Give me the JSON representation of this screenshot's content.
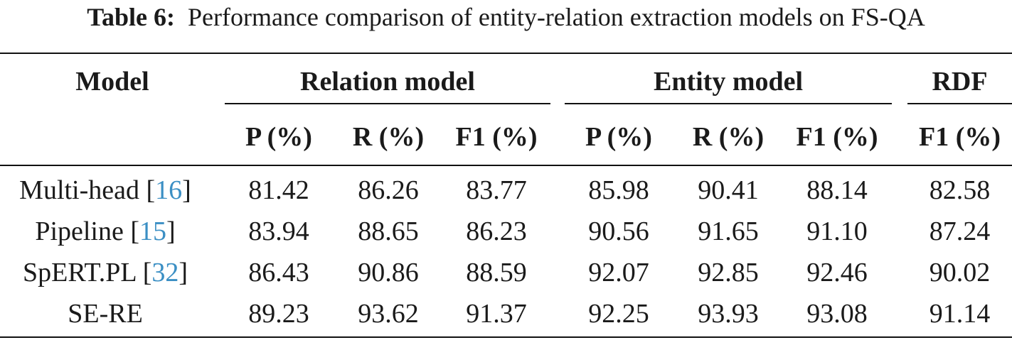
{
  "caption": {
    "label": "Table 6:",
    "text": "Performance comparison of entity-relation extraction models on FS-QA"
  },
  "header": {
    "model": "Model",
    "groups": [
      "Relation model",
      "Entity model",
      "RDF"
    ],
    "subcolumns": [
      "P (%)",
      "R (%)",
      "F1 (%)",
      "P (%)",
      "R (%)",
      "F1 (%)",
      "F1 (%)"
    ]
  },
  "rows": [
    {
      "model": "Multi-head",
      "ref": "16",
      "values": [
        "81.42",
        "86.26",
        "83.77",
        "85.98",
        "90.41",
        "88.14",
        "82.58"
      ]
    },
    {
      "model": "Pipeline",
      "ref": "15",
      "values": [
        "83.94",
        "88.65",
        "86.23",
        "90.56",
        "91.65",
        "91.10",
        "87.24"
      ]
    },
    {
      "model": "SpERT.PL",
      "ref": "32",
      "values": [
        "86.43",
        "90.86",
        "88.59",
        "92.07",
        "92.85",
        "92.46",
        "90.02"
      ]
    },
    {
      "model": "SE-RE",
      "ref": "",
      "values": [
        "89.23",
        "93.62",
        "91.37",
        "92.25",
        "93.93",
        "93.08",
        "91.14"
      ]
    }
  ]
}
